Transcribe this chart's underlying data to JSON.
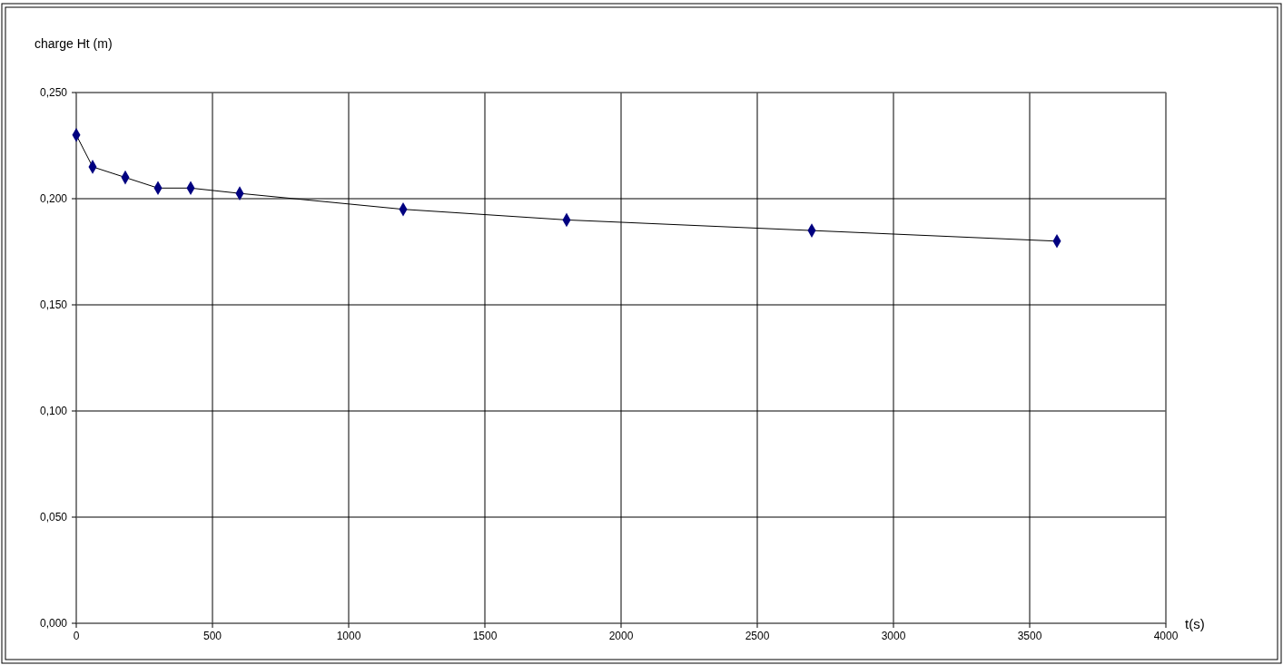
{
  "chart_data": {
    "type": "line",
    "ylabel": "charge Ht (m)",
    "xlabel": "t(s)",
    "x": [
      0,
      60,
      180,
      300,
      420,
      600,
      1200,
      1800,
      2700,
      3600
    ],
    "series": [
      {
        "color": "#000080",
        "values": [
          0.23,
          0.215,
          0.21,
          0.205,
          0.205,
          0.2025,
          0.195,
          0.19,
          0.185,
          0.18
        ]
      }
    ],
    "xlim": [
      0,
      4000
    ],
    "xticks": [
      0,
      500,
      1000,
      1500,
      2000,
      2500,
      3000,
      3500,
      4000
    ],
    "ylim": [
      0,
      0.25
    ],
    "yticks": [
      {
        "value": 0,
        "label": "0,000"
      },
      {
        "value": 0.05,
        "label": "0,050"
      },
      {
        "value": 0.1,
        "label": "0,100"
      },
      {
        "value": 0.15,
        "label": "0,150"
      },
      {
        "value": 0.2,
        "label": "0,200"
      },
      {
        "value": 0.25,
        "label": "0,250"
      }
    ],
    "grid": true,
    "marker": "diamond",
    "line_style": "solid"
  }
}
